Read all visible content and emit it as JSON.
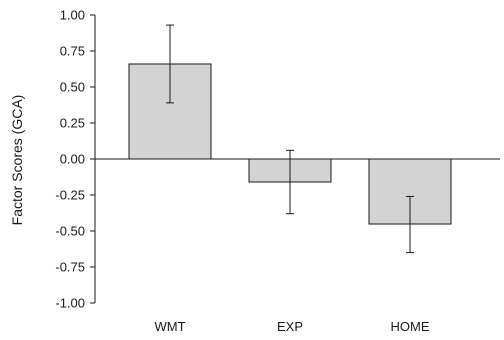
{
  "chart_data": {
    "type": "bar",
    "title": "",
    "xlabel": "",
    "ylabel": "Factor Scores (GCA)",
    "categories": [
      "WMT",
      "EXP",
      "HOME"
    ],
    "values": [
      0.66,
      -0.16,
      -0.45
    ],
    "error_bars": [
      {
        "low": 0.39,
        "high": 0.93
      },
      {
        "low": -0.38,
        "high": 0.06
      },
      {
        "low": -0.65,
        "high": -0.26
      }
    ],
    "ylim": [
      -1.0,
      1.0
    ],
    "yticks": [
      1.0,
      0.75,
      0.5,
      0.25,
      0.0,
      -0.25,
      -0.5,
      -0.75,
      -1.0
    ],
    "ytick_labels": [
      "1.00",
      "0.75",
      "0.50",
      "0.25",
      "0.00",
      "-0.25",
      "-0.50",
      "-0.75",
      "-1.00"
    ],
    "grid": false,
    "legend": "none",
    "bar_color": "#d3d3d3",
    "line_color": "#1a1a1a"
  }
}
